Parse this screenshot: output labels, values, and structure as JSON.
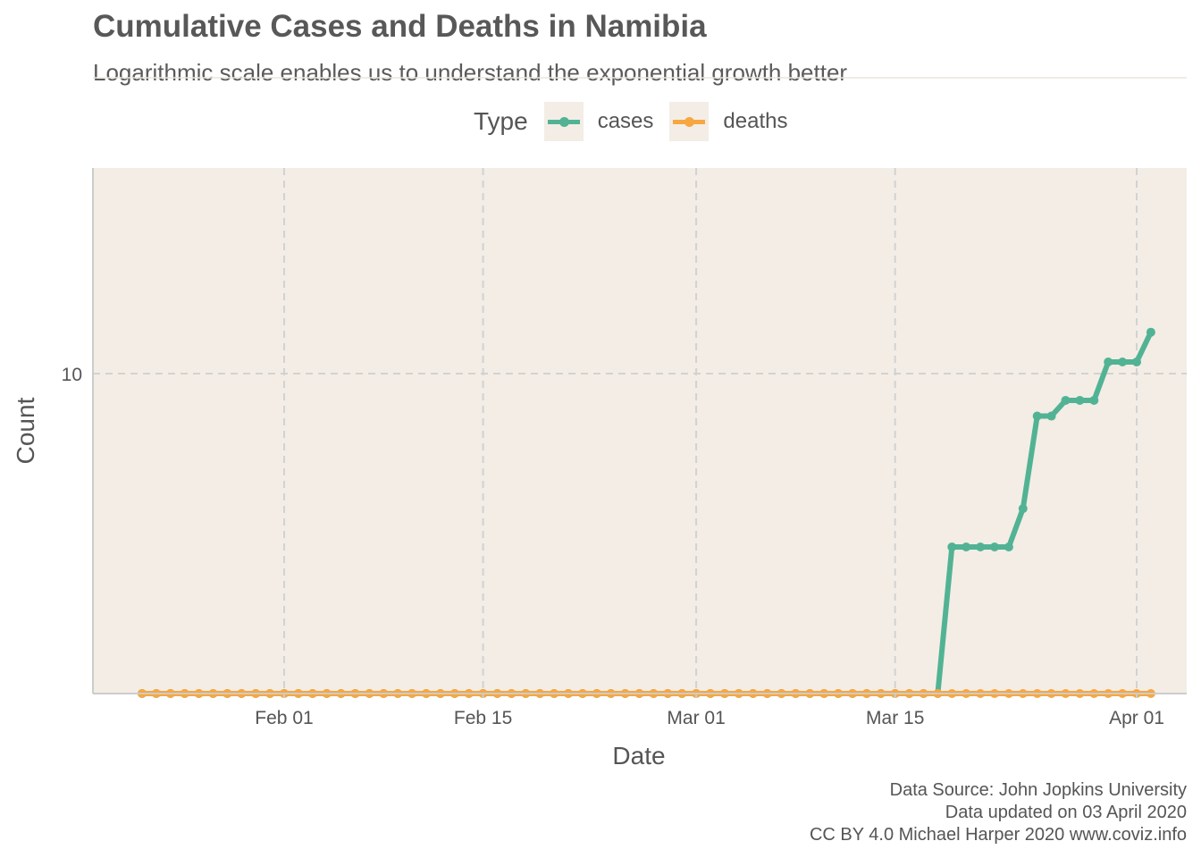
{
  "title": "Cumulative Cases and Deaths in Namibia",
  "subtitle": "Logarithmic scale enables us to understand the exponential growth better",
  "legend": {
    "title": "Type",
    "items": [
      {
        "label": "cases",
        "color": "#52b394"
      },
      {
        "label": "deaths",
        "color": "#f7a741"
      }
    ]
  },
  "caption": {
    "line1": "Data Source: John Jopkins University",
    "line2": "Data updated on 03 April 2020",
    "line3": "CC BY 4.0 Michael Harper 2020 www.coviz.info"
  },
  "chart_data": {
    "type": "line",
    "xlabel": "Date",
    "ylabel": "Count",
    "y_scale": "log",
    "y_ticks": [
      10
    ],
    "xlim": [
      "2020-01-22",
      "2020-04-01"
    ],
    "x_ticks": [
      "Feb 01",
      "Feb 15",
      "Mar 01",
      "Mar 15",
      "Apr 01"
    ],
    "x_tick_dates": [
      "2020-02-01",
      "2020-02-15",
      "2020-03-01",
      "2020-03-15",
      "2020-04-01"
    ],
    "grid": true,
    "legend_position": "top",
    "background": "#f3ede6",
    "start_date": "2020-01-22",
    "series": [
      {
        "name": "cases",
        "color": "#52b394",
        "values": [
          0,
          0,
          0,
          0,
          0,
          0,
          0,
          0,
          0,
          0,
          0,
          0,
          0,
          0,
          0,
          0,
          0,
          0,
          0,
          0,
          0,
          0,
          0,
          0,
          0,
          0,
          0,
          0,
          0,
          0,
          0,
          0,
          0,
          0,
          0,
          0,
          0,
          0,
          0,
          0,
          0,
          0,
          0,
          0,
          0,
          0,
          0,
          0,
          0,
          0,
          0,
          0,
          0,
          0,
          0,
          0,
          0,
          2,
          2,
          2,
          2,
          2,
          3,
          7,
          7,
          8,
          8,
          8,
          11,
          11,
          11,
          14
        ]
      },
      {
        "name": "deaths",
        "color": "#f7a741",
        "values": [
          0,
          0,
          0,
          0,
          0,
          0,
          0,
          0,
          0,
          0,
          0,
          0,
          0,
          0,
          0,
          0,
          0,
          0,
          0,
          0,
          0,
          0,
          0,
          0,
          0,
          0,
          0,
          0,
          0,
          0,
          0,
          0,
          0,
          0,
          0,
          0,
          0,
          0,
          0,
          0,
          0,
          0,
          0,
          0,
          0,
          0,
          0,
          0,
          0,
          0,
          0,
          0,
          0,
          0,
          0,
          0,
          0,
          0,
          0,
          0,
          0,
          0,
          0,
          0,
          0,
          0,
          0,
          0,
          0,
          0,
          0,
          0
        ]
      }
    ]
  }
}
